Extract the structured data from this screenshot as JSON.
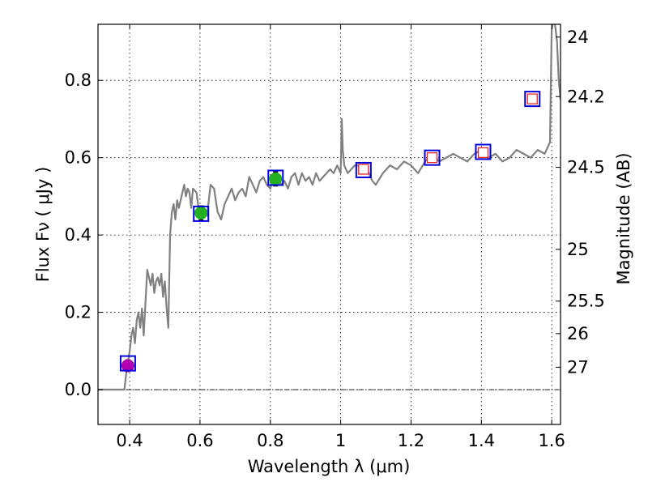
{
  "chart_data": {
    "type": "scatter",
    "xlabel": "Wavelength  λ (μm)",
    "ylabel": "Flux  Fν  ( μJy )",
    "y2label": "Magnitude (AB)",
    "xlim": [
      0.31,
      1.625
    ],
    "ylim": [
      -0.09,
      0.945
    ],
    "x_ticks": [
      0.4,
      0.6,
      0.8,
      1.0,
      1.2,
      1.4,
      1.6
    ],
    "x_tick_labels": [
      "0.4",
      "0.6",
      "0.8",
      "1",
      "1.2",
      "1.4",
      "1.6"
    ],
    "y_ticks": [
      0.0,
      0.2,
      0.4,
      0.6,
      0.8
    ],
    "y_tick_labels": [
      "0.0",
      "0.2",
      "0.4",
      "0.6",
      "0.8"
    ],
    "y2_ticks": [
      {
        "label": "24",
        "flux": 0.912
      },
      {
        "label": "24.2",
        "flux": 0.758
      },
      {
        "label": "24.5",
        "flux": 0.575
      },
      {
        "label": "25",
        "flux": 0.363
      },
      {
        "label": "25.5",
        "flux": 0.229
      },
      {
        "label": "26",
        "flux": 0.145
      },
      {
        "label": "27",
        "flux": 0.058
      }
    ],
    "grid": true,
    "zero_line": true,
    "model_spectrum": {
      "name": "SED template",
      "color": "#808080",
      "x": [
        0.31,
        0.385,
        0.39,
        0.4,
        0.405,
        0.41,
        0.415,
        0.42,
        0.425,
        0.43,
        0.435,
        0.44,
        0.45,
        0.455,
        0.46,
        0.465,
        0.47,
        0.475,
        0.48,
        0.485,
        0.49,
        0.495,
        0.5,
        0.505,
        0.51,
        0.515,
        0.52,
        0.525,
        0.53,
        0.535,
        0.54,
        0.55,
        0.555,
        0.56,
        0.565,
        0.57,
        0.575,
        0.58,
        0.59,
        0.6,
        0.61,
        0.62,
        0.63,
        0.64,
        0.65,
        0.66,
        0.67,
        0.68,
        0.69,
        0.7,
        0.71,
        0.72,
        0.73,
        0.74,
        0.75,
        0.76,
        0.77,
        0.78,
        0.79,
        0.8,
        0.81,
        0.82,
        0.83,
        0.84,
        0.85,
        0.86,
        0.87,
        0.88,
        0.89,
        0.9,
        0.91,
        0.92,
        0.93,
        0.94,
        0.95,
        0.96,
        0.97,
        0.98,
        0.99,
        1.0,
        1.003,
        1.006,
        1.01,
        1.02,
        1.03,
        1.04,
        1.05,
        1.06,
        1.07,
        1.08,
        1.09,
        1.1,
        1.12,
        1.14,
        1.16,
        1.18,
        1.2,
        1.22,
        1.24,
        1.26,
        1.28,
        1.3,
        1.32,
        1.34,
        1.36,
        1.38,
        1.4,
        1.42,
        1.44,
        1.46,
        1.48,
        1.5,
        1.52,
        1.54,
        1.56,
        1.58,
        1.59,
        1.595,
        1.6,
        1.605,
        1.61,
        1.615,
        1.62,
        1.625
      ],
      "y": [
        0.0,
        0.0,
        0.04,
        0.1,
        0.14,
        0.16,
        0.12,
        0.18,
        0.2,
        0.16,
        0.21,
        0.14,
        0.31,
        0.29,
        0.27,
        0.3,
        0.25,
        0.28,
        0.29,
        0.27,
        0.3,
        0.24,
        0.28,
        0.21,
        0.16,
        0.4,
        0.46,
        0.48,
        0.44,
        0.49,
        0.47,
        0.51,
        0.53,
        0.5,
        0.52,
        0.51,
        0.47,
        0.52,
        0.51,
        0.44,
        0.46,
        0.45,
        0.53,
        0.52,
        0.46,
        0.44,
        0.48,
        0.5,
        0.52,
        0.49,
        0.51,
        0.52,
        0.5,
        0.55,
        0.53,
        0.51,
        0.54,
        0.55,
        0.53,
        0.52,
        0.56,
        0.55,
        0.53,
        0.54,
        0.52,
        0.55,
        0.56,
        0.53,
        0.56,
        0.54,
        0.55,
        0.53,
        0.56,
        0.54,
        0.55,
        0.56,
        0.57,
        0.56,
        0.58,
        0.56,
        0.7,
        0.62,
        0.58,
        0.56,
        0.57,
        0.58,
        0.58,
        0.57,
        0.58,
        0.56,
        0.54,
        0.53,
        0.56,
        0.58,
        0.57,
        0.59,
        0.58,
        0.56,
        0.59,
        0.61,
        0.59,
        0.6,
        0.61,
        0.6,
        0.59,
        0.61,
        0.62,
        0.6,
        0.61,
        0.59,
        0.6,
        0.62,
        0.61,
        0.6,
        0.62,
        0.61,
        0.63,
        0.64,
        0.93,
        0.96,
        0.94,
        0.9,
        0.8,
        0.75
      ]
    },
    "series": [
      {
        "name": "photometry (magenta circle)",
        "marker": "circle",
        "color": "#b000b0",
        "x": [
          0.395
        ],
        "y": [
          0.062
        ],
        "yerr": [
          0.015
        ]
      },
      {
        "name": "photometry (green circle)",
        "marker": "circle",
        "color": "#22b022",
        "x": [
          0.603,
          0.815
        ],
        "y": [
          0.457,
          0.545
        ],
        "yerr": [
          0.018,
          0.018
        ]
      },
      {
        "name": "model flux (blue square)",
        "marker": "square",
        "color": "#0000dd",
        "x": [
          0.395,
          0.603,
          0.815,
          1.065,
          1.26,
          1.405,
          1.545
        ],
        "y": [
          0.068,
          0.455,
          0.548,
          0.568,
          0.6,
          0.615,
          0.752
        ]
      },
      {
        "name": "photometry (red open square)",
        "marker": "open-square",
        "color": "#ee2222",
        "x": [
          1.065,
          1.26,
          1.405,
          1.545
        ],
        "y": [
          0.57,
          0.6,
          0.613,
          0.752
        ]
      }
    ]
  }
}
